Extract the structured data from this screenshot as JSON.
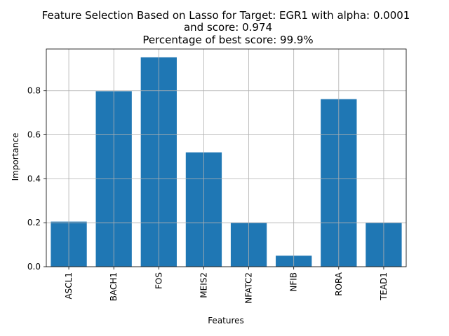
{
  "chart_data": {
    "type": "bar",
    "title_lines": [
      "Feature Selection Based on Lasso for Target: EGR1 with alpha: 0.0001",
      "and score: 0.974",
      "Percentage of best score: 99.9%"
    ],
    "xlabel": "Features",
    "ylabel": "Importance",
    "categories": [
      "ASCL1",
      "BACH1",
      "FOS",
      "MEIS2",
      "NFATC2",
      "NFIB",
      "RORA",
      "TEAD1"
    ],
    "values": [
      0.205,
      0.798,
      0.952,
      0.52,
      0.2,
      0.05,
      0.762,
      0.2
    ],
    "ylim": [
      0,
      0.99
    ],
    "yticks": [
      0.0,
      0.2,
      0.4,
      0.6,
      0.8
    ],
    "ytick_labels": [
      "0.0",
      "0.2",
      "0.4",
      "0.6",
      "0.8"
    ],
    "grid": true,
    "bar_color": "#1f77b4"
  }
}
